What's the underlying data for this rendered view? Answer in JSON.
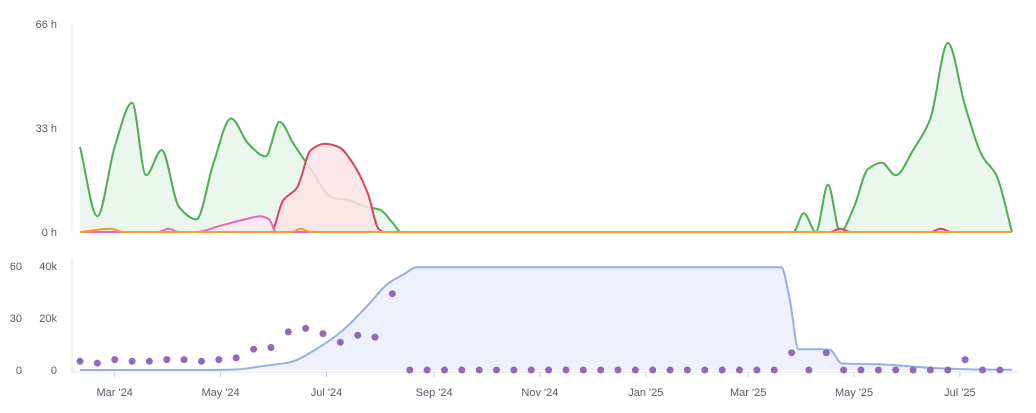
{
  "chart_data": [
    {
      "type": "area",
      "ylim": [
        0,
        66
      ],
      "y_ticks": [
        "0 h",
        "33 h",
        "66 h"
      ],
      "y_tick_values": [
        0,
        33,
        66
      ],
      "grid": false,
      "series": [
        {
          "color": "#4caf50",
          "fill": "#e8f5e9",
          "points": [
            [
              "2024-02-10",
              27
            ],
            [
              "2024-02-20",
              5
            ],
            [
              "2024-03-01",
              27
            ],
            [
              "2024-03-11",
              41
            ],
            [
              "2024-03-19",
              18
            ],
            [
              "2024-03-28",
              26
            ],
            [
              "2024-04-07",
              8
            ],
            [
              "2024-04-17",
              4
            ],
            [
              "2024-04-27",
              22
            ],
            [
              "2024-05-07",
              36
            ],
            [
              "2024-05-17",
              28
            ],
            [
              "2024-05-27",
              24
            ],
            [
              "2024-06-04",
              35
            ],
            [
              "2024-06-12",
              28
            ],
            [
              "2024-06-22",
              20
            ],
            [
              "2024-07-04",
              11
            ],
            [
              "2024-07-14",
              10
            ],
            [
              "2024-07-24",
              8
            ],
            [
              "2024-08-01",
              7
            ],
            [
              "2024-08-08",
              3
            ],
            [
              "2024-08-13",
              0
            ],
            [
              "2025-03-27",
              0
            ],
            [
              "2025-04-02",
              6
            ],
            [
              "2025-04-09",
              0
            ],
            [
              "2025-04-16",
              15
            ],
            [
              "2025-04-23",
              0
            ],
            [
              "2025-05-01",
              8
            ],
            [
              "2025-05-09",
              20
            ],
            [
              "2025-05-17",
              22
            ],
            [
              "2025-05-25",
              18
            ],
            [
              "2025-06-04",
              26
            ],
            [
              "2025-06-14",
              36
            ],
            [
              "2025-06-24",
              60
            ],
            [
              "2025-07-04",
              40
            ],
            [
              "2025-07-14",
              24
            ],
            [
              "2025-07-22",
              18
            ],
            [
              "2025-07-31",
              0
            ]
          ]
        },
        {
          "color": "#d2485d",
          "fill": "#fbe3e6",
          "points": [
            [
              "2024-02-10",
              0
            ],
            [
              "2024-05-30",
              0
            ],
            [
              "2024-06-06",
              10
            ],
            [
              "2024-06-14",
              14
            ],
            [
              "2024-06-22",
              26
            ],
            [
              "2024-06-30",
              28
            ],
            [
              "2024-07-08",
              27
            ],
            [
              "2024-07-16",
              22
            ],
            [
              "2024-07-25",
              12
            ],
            [
              "2024-07-31",
              1
            ],
            [
              "2024-08-03",
              0
            ],
            [
              "2025-04-17",
              0
            ],
            [
              "2025-04-23",
              1
            ],
            [
              "2025-04-29",
              0
            ],
            [
              "2025-06-14",
              0
            ],
            [
              "2025-06-20",
              1
            ],
            [
              "2025-06-26",
              0
            ],
            [
              "2025-07-31",
              0
            ]
          ]
        },
        {
          "color": "#e06bb6",
          "fill": "#fbe8f3",
          "points": [
            [
              "2024-02-10",
              0
            ],
            [
              "2024-03-26",
              0
            ],
            [
              "2024-04-01",
              1
            ],
            [
              "2024-04-07",
              0
            ],
            [
              "2024-04-17",
              0
            ],
            [
              "2024-05-01",
              2
            ],
            [
              "2024-05-15",
              4
            ],
            [
              "2024-05-24",
              5
            ],
            [
              "2024-05-29",
              4
            ],
            [
              "2024-06-02",
              0
            ],
            [
              "2025-07-31",
              0
            ]
          ]
        },
        {
          "color": "#f0a030",
          "fill": "none",
          "points": [
            [
              "2024-02-10",
              0
            ],
            [
              "2024-02-28",
              1
            ],
            [
              "2024-03-06",
              0
            ],
            [
              "2024-06-11",
              0
            ],
            [
              "2024-06-16",
              1
            ],
            [
              "2024-06-22",
              0
            ],
            [
              "2025-07-31",
              0
            ]
          ]
        }
      ]
    },
    {
      "type": "scatter",
      "x_ticks": [
        "Mar '24",
        "May '24",
        "Jul '24",
        "Sep '24",
        "Nov '24",
        "Jan '25",
        "Mar '25",
        "May '25",
        "Jul '25"
      ],
      "x_tick_dates": [
        "2024-03-01",
        "2024-05-01",
        "2024-07-01",
        "2024-09-01",
        "2024-11-01",
        "2025-01-01",
        "2025-03-01",
        "2025-05-01",
        "2025-07-01"
      ],
      "left_axis": {
        "ticks": [
          "0",
          "30",
          "60"
        ],
        "values": [
          0,
          30,
          60
        ],
        "ylim": [
          0,
          60
        ]
      },
      "right_axis": {
        "ticks": [
          "0",
          "20k",
          "40k"
        ],
        "values": [
          0,
          20000,
          40000
        ],
        "ylim": [
          0,
          40000
        ]
      },
      "points_color": "#8e6bb8",
      "points": [
        [
          "2024-02-10",
          5
        ],
        [
          "2024-02-20",
          4
        ],
        [
          "2024-03-01",
          6
        ],
        [
          "2024-03-11",
          5
        ],
        [
          "2024-03-21",
          5
        ],
        [
          "2024-03-31",
          6
        ],
        [
          "2024-04-10",
          6
        ],
        [
          "2024-04-20",
          5
        ],
        [
          "2024-04-30",
          6
        ],
        [
          "2024-05-10",
          7
        ],
        [
          "2024-05-20",
          12
        ],
        [
          "2024-05-30",
          13
        ],
        [
          "2024-06-09",
          22
        ],
        [
          "2024-06-19",
          24
        ],
        [
          "2024-06-29",
          21
        ],
        [
          "2024-07-09",
          16
        ],
        [
          "2024-07-19",
          20
        ],
        [
          "2024-07-29",
          19
        ],
        [
          "2024-08-08",
          44
        ],
        [
          "2024-08-18",
          0
        ],
        [
          "2024-08-28",
          0
        ],
        [
          "2024-09-07",
          0
        ],
        [
          "2024-09-17",
          0
        ],
        [
          "2024-09-27",
          0
        ],
        [
          "2024-10-07",
          0
        ],
        [
          "2024-10-17",
          0
        ],
        [
          "2024-10-27",
          0
        ],
        [
          "2024-11-06",
          0
        ],
        [
          "2024-11-16",
          0
        ],
        [
          "2024-11-26",
          0
        ],
        [
          "2024-12-06",
          0
        ],
        [
          "2024-12-16",
          0
        ],
        [
          "2024-12-26",
          0
        ],
        [
          "2025-01-05",
          0
        ],
        [
          "2025-01-15",
          0
        ],
        [
          "2025-01-25",
          0
        ],
        [
          "2025-02-04",
          0
        ],
        [
          "2025-02-14",
          0
        ],
        [
          "2025-02-24",
          0
        ],
        [
          "2025-03-06",
          0
        ],
        [
          "2025-03-16",
          0
        ],
        [
          "2025-03-26",
          10
        ],
        [
          "2025-04-05",
          0
        ],
        [
          "2025-04-15",
          10
        ],
        [
          "2025-04-25",
          0
        ],
        [
          "2025-05-05",
          0
        ],
        [
          "2025-05-15",
          0
        ],
        [
          "2025-05-25",
          0
        ],
        [
          "2025-06-04",
          0
        ],
        [
          "2025-06-14",
          0
        ],
        [
          "2025-06-24",
          0
        ],
        [
          "2025-07-04",
          6
        ],
        [
          "2025-07-14",
          0
        ],
        [
          "2025-07-24",
          0
        ]
      ],
      "line_color": "#9aaee2",
      "line_fill": "#eef0fb",
      "line": [
        [
          "2024-02-10",
          0
        ],
        [
          "2024-04-20",
          0
        ],
        [
          "2024-05-10",
          200
        ],
        [
          "2024-05-25",
          1500
        ],
        [
          "2024-06-10",
          3000
        ],
        [
          "2024-06-25",
          8000
        ],
        [
          "2024-07-10",
          15000
        ],
        [
          "2024-07-25",
          25000
        ],
        [
          "2024-08-05",
          33000
        ],
        [
          "2024-08-15",
          37000
        ],
        [
          "2024-08-22",
          39500
        ],
        [
          "2025-03-20",
          39500
        ],
        [
          "2025-03-25",
          27000
        ],
        [
          "2025-03-30",
          8000
        ],
        [
          "2025-04-10",
          8000
        ],
        [
          "2025-04-17",
          7800
        ],
        [
          "2025-04-24",
          2500
        ],
        [
          "2025-05-15",
          2200
        ],
        [
          "2025-06-15",
          800
        ],
        [
          "2025-07-10",
          200
        ],
        [
          "2025-07-31",
          100
        ]
      ]
    }
  ]
}
